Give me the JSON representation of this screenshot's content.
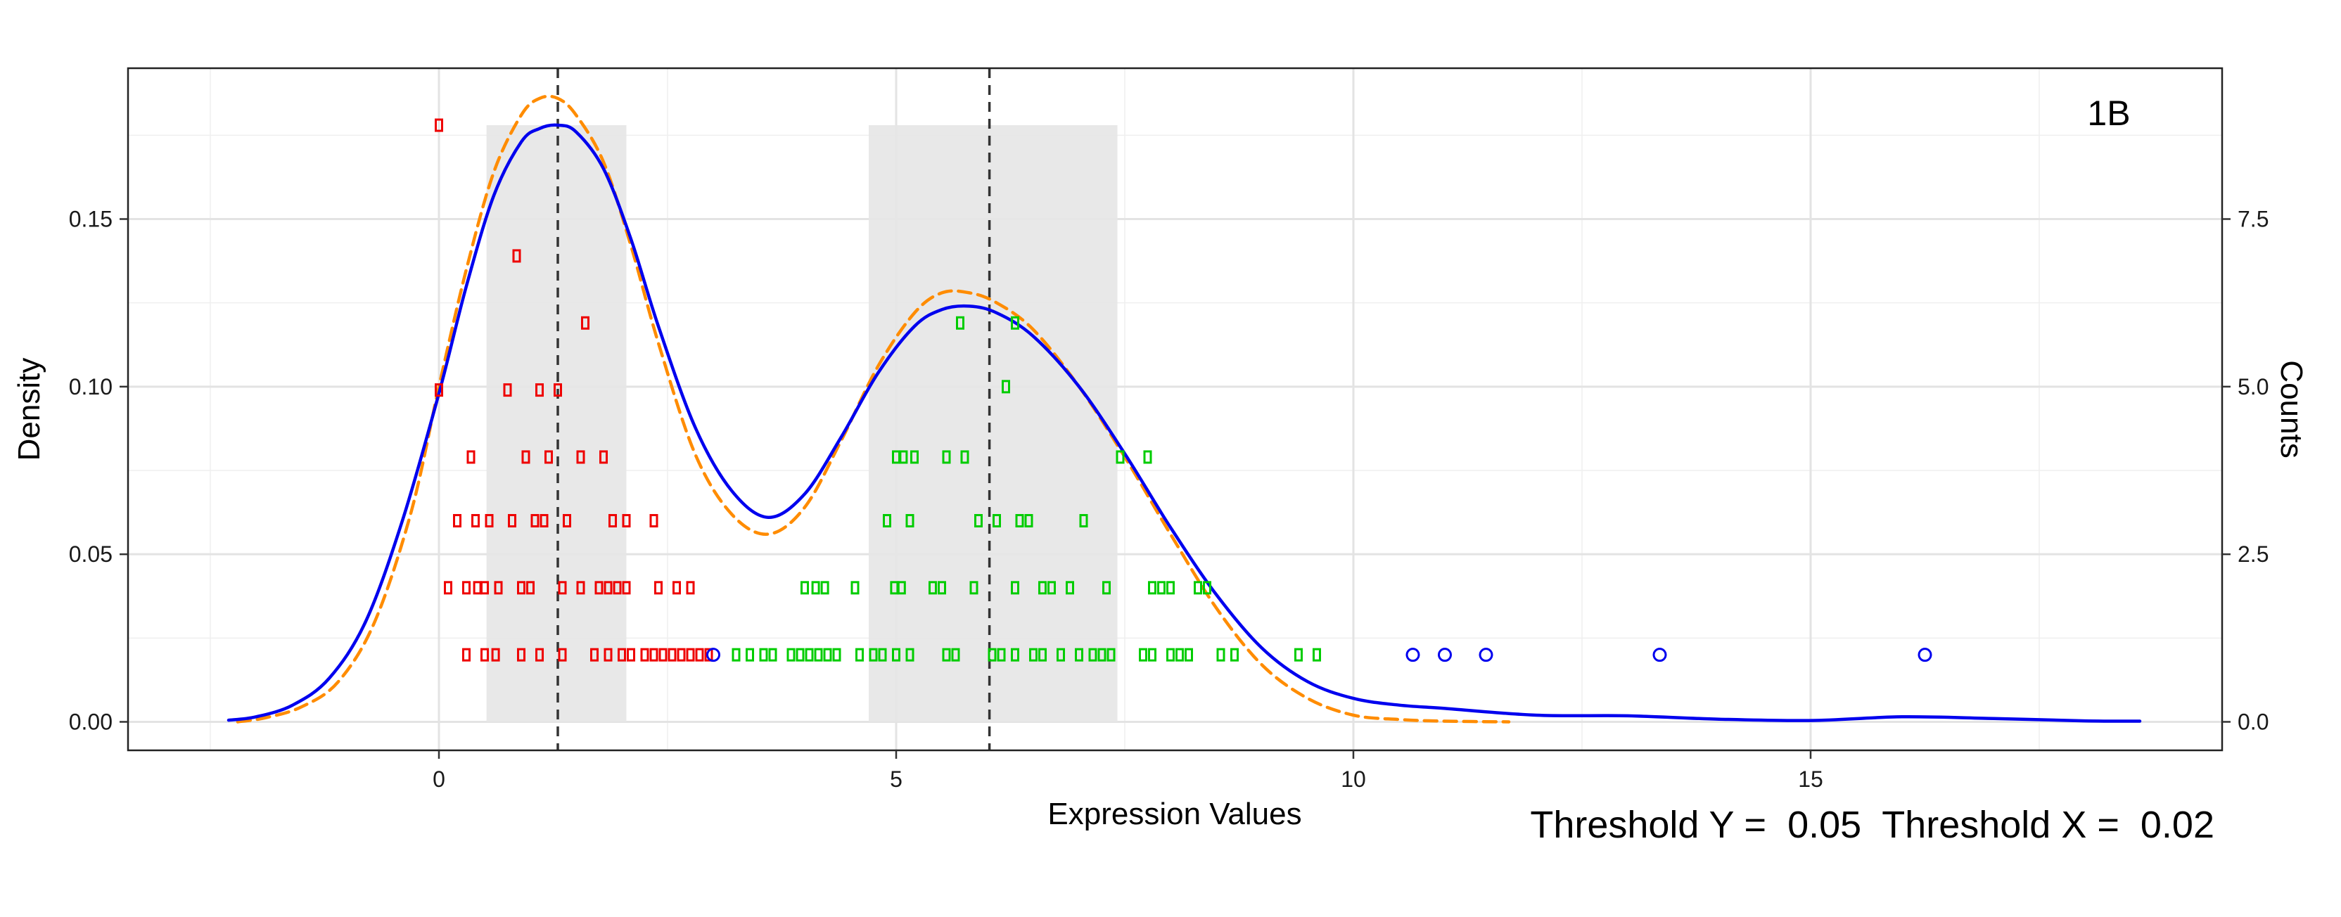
{
  "chart_data": {
    "type": "scatter",
    "panel_label": "1B",
    "xlabel": "Expression Values",
    "ylabel": "Density",
    "y2label": "Counts",
    "xlim": [
      -3.4,
      19.5
    ],
    "ylim": [
      -0.0085,
      0.195
    ],
    "y2lim": [
      -0.425,
      9.75
    ],
    "x_ticks": [
      0,
      5,
      10,
      15
    ],
    "x_tick_labels": [
      "0",
      "5",
      "10",
      "15"
    ],
    "y_ticks": [
      0.0,
      0.05,
      0.1,
      0.15
    ],
    "y_tick_labels": [
      "0.00",
      "0.05",
      "0.10",
      "0.15"
    ],
    "y2_ticks": [
      0.0,
      2.5,
      5.0,
      7.5
    ],
    "y2_tick_labels": [
      "0.0",
      "2.5",
      "5.0",
      "7.5"
    ],
    "grid": true,
    "colors": {
      "fitted_density": "#0000ee",
      "mixture_density": "#ff8c00",
      "group_low": "#ee0000",
      "group_high": "#00cc00",
      "outliers": "#0000ee",
      "shaded_region": "#e6e6e6",
      "vline": "#333333"
    },
    "shaded_regions": [
      {
        "x0": 0.52,
        "x1": 2.05,
        "ymax": 0.178
      },
      {
        "x0": 4.7,
        "x1": 7.42,
        "ymax": 0.178
      }
    ],
    "vlines": [
      1.3,
      6.02
    ],
    "series": [
      {
        "style": "solid",
        "color": "#0000ee",
        "x": [
          -2.3,
          -2.0,
          -1.6,
          -1.2,
          -0.8,
          -0.4,
          0.0,
          0.3,
          0.6,
          0.9,
          1.1,
          1.3,
          1.5,
          1.8,
          2.1,
          2.4,
          2.8,
          3.2,
          3.6,
          4.0,
          4.4,
          4.8,
          5.2,
          5.5,
          5.8,
          6.1,
          6.5,
          7.0,
          7.5,
          8.0,
          8.5,
          9.0,
          9.5,
          10.0,
          10.5,
          11.0,
          12.0,
          13.0,
          14.0,
          15.0,
          16.0,
          17.0,
          18.0,
          18.6
        ],
        "y": [
          0.0005,
          0.0015,
          0.005,
          0.013,
          0.03,
          0.06,
          0.098,
          0.13,
          0.157,
          0.173,
          0.177,
          0.178,
          0.176,
          0.165,
          0.144,
          0.118,
          0.088,
          0.069,
          0.061,
          0.068,
          0.085,
          0.104,
          0.118,
          0.123,
          0.124,
          0.122,
          0.115,
          0.1,
          0.08,
          0.058,
          0.038,
          0.022,
          0.012,
          0.007,
          0.005,
          0.004,
          0.002,
          0.0018,
          0.0008,
          0.0004,
          0.0015,
          0.001,
          0.0003,
          0.0002
        ]
      },
      {
        "style": "dashed",
        "color": "#ff8c00",
        "x": [
          -2.2,
          -1.9,
          -1.5,
          -1.1,
          -0.7,
          -0.3,
          0.0,
          0.3,
          0.6,
          0.9,
          1.1,
          1.3,
          1.5,
          1.8,
          2.1,
          2.4,
          2.8,
          3.2,
          3.6,
          4.0,
          4.4,
          4.8,
          5.2,
          5.5,
          5.8,
          6.1,
          6.5,
          7.0,
          7.5,
          8.0,
          8.5,
          9.0,
          9.5,
          10.0,
          10.5,
          11.0,
          11.7
        ],
        "y": [
          0.0,
          0.0012,
          0.0045,
          0.012,
          0.03,
          0.063,
          0.1,
          0.135,
          0.164,
          0.181,
          0.186,
          0.186,
          0.181,
          0.167,
          0.142,
          0.113,
          0.08,
          0.062,
          0.056,
          0.064,
          0.084,
          0.106,
          0.122,
          0.128,
          0.128,
          0.125,
          0.117,
          0.1,
          0.079,
          0.056,
          0.034,
          0.017,
          0.007,
          0.002,
          0.0007,
          0.0002,
          0.0
        ]
      }
    ],
    "points": {
      "low_group": [
        {
          "x": 0.0,
          "y": 0.178
        },
        {
          "x": 0.85,
          "y": 0.139
        },
        {
          "x": 1.6,
          "y": 0.119
        },
        {
          "x": 0.0,
          "y": 0.099
        },
        {
          "x": 0.75,
          "y": 0.099
        },
        {
          "x": 1.1,
          "y": 0.099
        },
        {
          "x": 1.3,
          "y": 0.099
        },
        {
          "x": 0.35,
          "y": 0.079
        },
        {
          "x": 0.95,
          "y": 0.079
        },
        {
          "x": 1.2,
          "y": 0.079
        },
        {
          "x": 1.55,
          "y": 0.079
        },
        {
          "x": 1.8,
          "y": 0.079
        },
        {
          "x": 0.2,
          "y": 0.06
        },
        {
          "x": 0.4,
          "y": 0.06
        },
        {
          "x": 0.55,
          "y": 0.06
        },
        {
          "x": 0.8,
          "y": 0.06
        },
        {
          "x": 1.05,
          "y": 0.06
        },
        {
          "x": 1.15,
          "y": 0.06
        },
        {
          "x": 1.4,
          "y": 0.06
        },
        {
          "x": 1.9,
          "y": 0.06
        },
        {
          "x": 2.05,
          "y": 0.06
        },
        {
          "x": 2.35,
          "y": 0.06
        },
        {
          "x": 0.1,
          "y": 0.04
        },
        {
          "x": 0.3,
          "y": 0.04
        },
        {
          "x": 0.42,
          "y": 0.04
        },
        {
          "x": 0.5,
          "y": 0.04
        },
        {
          "x": 0.65,
          "y": 0.04
        },
        {
          "x": 0.9,
          "y": 0.04
        },
        {
          "x": 1.0,
          "y": 0.04
        },
        {
          "x": 1.35,
          "y": 0.04
        },
        {
          "x": 1.55,
          "y": 0.04
        },
        {
          "x": 1.75,
          "y": 0.04
        },
        {
          "x": 1.85,
          "y": 0.04
        },
        {
          "x": 1.95,
          "y": 0.04
        },
        {
          "x": 2.05,
          "y": 0.04
        },
        {
          "x": 2.4,
          "y": 0.04
        },
        {
          "x": 2.6,
          "y": 0.04
        },
        {
          "x": 2.75,
          "y": 0.04
        },
        {
          "x": 0.3,
          "y": 0.02
        },
        {
          "x": 0.5,
          "y": 0.02
        },
        {
          "x": 0.62,
          "y": 0.02
        },
        {
          "x": 0.9,
          "y": 0.02
        },
        {
          "x": 1.1,
          "y": 0.02
        },
        {
          "x": 1.35,
          "y": 0.02
        },
        {
          "x": 1.7,
          "y": 0.02
        },
        {
          "x": 1.85,
          "y": 0.02
        },
        {
          "x": 2.0,
          "y": 0.02
        },
        {
          "x": 2.1,
          "y": 0.02
        },
        {
          "x": 2.25,
          "y": 0.02
        },
        {
          "x": 2.35,
          "y": 0.02
        },
        {
          "x": 2.45,
          "y": 0.02
        },
        {
          "x": 2.55,
          "y": 0.02
        },
        {
          "x": 2.65,
          "y": 0.02
        },
        {
          "x": 2.75,
          "y": 0.02
        },
        {
          "x": 2.85,
          "y": 0.02
        },
        {
          "x": 2.95,
          "y": 0.02
        }
      ],
      "high_group": [
        {
          "x": 5.7,
          "y": 0.119
        },
        {
          "x": 6.3,
          "y": 0.119
        },
        {
          "x": 6.2,
          "y": 0.1
        },
        {
          "x": 5.0,
          "y": 0.079
        },
        {
          "x": 5.08,
          "y": 0.079
        },
        {
          "x": 5.2,
          "y": 0.079
        },
        {
          "x": 5.55,
          "y": 0.079
        },
        {
          "x": 5.75,
          "y": 0.079
        },
        {
          "x": 7.45,
          "y": 0.079
        },
        {
          "x": 7.75,
          "y": 0.079
        },
        {
          "x": 4.9,
          "y": 0.06
        },
        {
          "x": 5.15,
          "y": 0.06
        },
        {
          "x": 5.9,
          "y": 0.06
        },
        {
          "x": 6.1,
          "y": 0.06
        },
        {
          "x": 6.35,
          "y": 0.06
        },
        {
          "x": 6.45,
          "y": 0.06
        },
        {
          "x": 7.05,
          "y": 0.06
        },
        {
          "x": 4.0,
          "y": 0.04
        },
        {
          "x": 4.12,
          "y": 0.04
        },
        {
          "x": 4.22,
          "y": 0.04
        },
        {
          "x": 4.55,
          "y": 0.04
        },
        {
          "x": 4.98,
          "y": 0.04
        },
        {
          "x": 5.06,
          "y": 0.04
        },
        {
          "x": 5.4,
          "y": 0.04
        },
        {
          "x": 5.5,
          "y": 0.04
        },
        {
          "x": 5.85,
          "y": 0.04
        },
        {
          "x": 6.3,
          "y": 0.04
        },
        {
          "x": 6.6,
          "y": 0.04
        },
        {
          "x": 6.7,
          "y": 0.04
        },
        {
          "x": 6.9,
          "y": 0.04
        },
        {
          "x": 7.3,
          "y": 0.04
        },
        {
          "x": 7.8,
          "y": 0.04
        },
        {
          "x": 7.9,
          "y": 0.04
        },
        {
          "x": 8.0,
          "y": 0.04
        },
        {
          "x": 8.3,
          "y": 0.04
        },
        {
          "x": 8.4,
          "y": 0.04
        },
        {
          "x": 3.25,
          "y": 0.02
        },
        {
          "x": 3.4,
          "y": 0.02
        },
        {
          "x": 3.55,
          "y": 0.02
        },
        {
          "x": 3.65,
          "y": 0.02
        },
        {
          "x": 3.85,
          "y": 0.02
        },
        {
          "x": 3.95,
          "y": 0.02
        },
        {
          "x": 4.05,
          "y": 0.02
        },
        {
          "x": 4.15,
          "y": 0.02
        },
        {
          "x": 4.25,
          "y": 0.02
        },
        {
          "x": 4.35,
          "y": 0.02
        },
        {
          "x": 4.6,
          "y": 0.02
        },
        {
          "x": 4.75,
          "y": 0.02
        },
        {
          "x": 4.85,
          "y": 0.02
        },
        {
          "x": 5.0,
          "y": 0.02
        },
        {
          "x": 5.15,
          "y": 0.02
        },
        {
          "x": 5.55,
          "y": 0.02
        },
        {
          "x": 5.65,
          "y": 0.02
        },
        {
          "x": 6.05,
          "y": 0.02
        },
        {
          "x": 6.15,
          "y": 0.02
        },
        {
          "x": 6.3,
          "y": 0.02
        },
        {
          "x": 6.5,
          "y": 0.02
        },
        {
          "x": 6.6,
          "y": 0.02
        },
        {
          "x": 6.8,
          "y": 0.02
        },
        {
          "x": 7.0,
          "y": 0.02
        },
        {
          "x": 7.15,
          "y": 0.02
        },
        {
          "x": 7.25,
          "y": 0.02
        },
        {
          "x": 7.35,
          "y": 0.02
        },
        {
          "x": 7.7,
          "y": 0.02
        },
        {
          "x": 7.8,
          "y": 0.02
        },
        {
          "x": 8.0,
          "y": 0.02
        },
        {
          "x": 8.1,
          "y": 0.02
        },
        {
          "x": 8.2,
          "y": 0.02
        },
        {
          "x": 8.55,
          "y": 0.02
        },
        {
          "x": 8.7,
          "y": 0.02
        },
        {
          "x": 9.4,
          "y": 0.02
        },
        {
          "x": 9.6,
          "y": 0.02
        }
      ],
      "outliers": [
        {
          "x": 3.0,
          "y": 0.02
        },
        {
          "x": 10.65,
          "y": 0.02
        },
        {
          "x": 11.0,
          "y": 0.02
        },
        {
          "x": 11.45,
          "y": 0.02
        },
        {
          "x": 13.35,
          "y": 0.02
        },
        {
          "x": 16.25,
          "y": 0.02
        }
      ]
    }
  },
  "footer": {
    "threshold_text": "Threshold Y =  0.05  Threshold X =  0.02"
  }
}
